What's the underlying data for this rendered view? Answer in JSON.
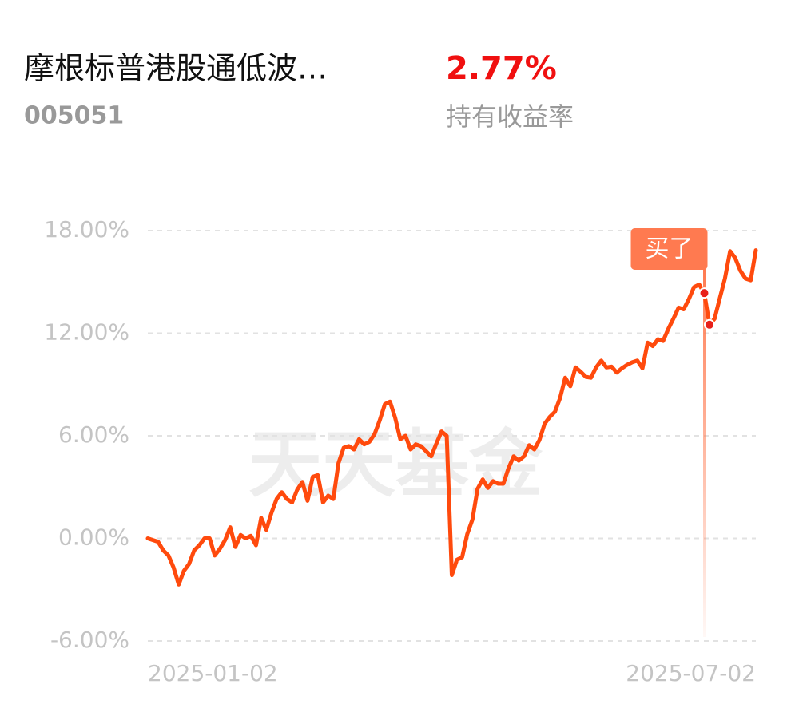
{
  "header": {
    "title": "摩根标普港股通低波…",
    "code": "005051",
    "return_value": "2.77%",
    "return_label": "持有收益率"
  },
  "chart_data": {
    "type": "line",
    "watermark": "天天基金",
    "annotation": "买了",
    "color": "#ff4a0d",
    "grid": true,
    "categories": [
      "2025-01-02",
      null,
      null,
      null,
      null,
      null,
      null,
      null,
      null,
      null,
      null,
      null,
      null,
      null,
      null,
      null,
      null,
      null,
      null,
      null,
      null,
      null,
      null,
      null,
      null,
      null,
      null,
      null,
      null,
      null,
      null,
      null,
      null,
      null,
      null,
      null,
      null,
      null,
      null,
      null,
      null,
      null,
      null,
      null,
      null,
      null,
      null,
      null,
      null,
      null,
      null,
      null,
      null,
      null,
      null,
      null,
      null,
      null,
      null,
      null,
      null,
      null,
      null,
      null,
      null,
      null,
      null,
      null,
      null,
      null,
      null,
      null,
      null,
      null,
      null,
      null,
      null,
      null,
      null,
      null,
      null,
      null,
      null,
      null,
      null,
      null,
      null,
      null,
      null,
      null,
      null,
      null,
      null,
      null,
      null,
      null,
      null,
      null,
      null,
      null,
      null,
      null,
      null,
      null,
      null,
      null,
      null,
      null,
      null,
      null,
      null,
      null,
      null,
      null,
      null,
      null,
      null,
      null,
      "2025-07-02"
    ],
    "values": [
      0,
      -0.1,
      -0.2,
      -0.7,
      -1.0,
      -1.7,
      -2.7,
      -1.9,
      -1.5,
      -0.7,
      -0.4,
      0.0,
      0.0,
      -1.0,
      -0.6,
      -0.1,
      0.65,
      -0.5,
      0.2,
      0.0,
      0.15,
      -0.4,
      1.2,
      0.5,
      1.5,
      2.3,
      2.7,
      2.3,
      2.1,
      2.85,
      3.3,
      2.2,
      3.6,
      3.7,
      2.1,
      2.5,
      2.3,
      4.4,
      5.3,
      5.4,
      5.2,
      5.8,
      5.5,
      5.65,
      6.1,
      6.9,
      7.85,
      8.0,
      7.05,
      5.8,
      6.0,
      5.2,
      5.5,
      5.4,
      5.1,
      4.8,
      5.55,
      6.25,
      6.0,
      -2.15,
      -1.25,
      -1.1,
      0.25,
      1.1,
      2.9,
      3.45,
      2.95,
      3.35,
      3.2,
      3.2,
      4.1,
      4.8,
      4.55,
      4.8,
      5.45,
      5.2,
      5.75,
      6.7,
      7.1,
      7.4,
      8.2,
      9.4,
      8.9,
      10.0,
      9.75,
      9.45,
      9.4,
      10.0,
      10.4,
      10.0,
      10.05,
      9.7,
      9.95,
      10.15,
      10.3,
      10.4,
      9.95,
      11.45,
      11.25,
      11.65,
      11.55,
      12.25,
      12.85,
      13.5,
      13.4,
      14.0,
      14.7,
      14.85,
      14.35,
      12.5,
      12.85,
      14.05,
      15.2,
      16.8,
      16.4,
      15.65,
      15.2,
      15.1,
      16.85
    ],
    "ylim": [
      -6,
      18
    ],
    "yticks": [
      {
        "value": 18,
        "label": "18.00%"
      },
      {
        "value": 12,
        "label": "12.00%"
      },
      {
        "value": 6,
        "label": "6.00%"
      },
      {
        "value": 0,
        "label": "0.00%"
      },
      {
        "value": -6,
        "label": "-6.00%"
      }
    ]
  }
}
